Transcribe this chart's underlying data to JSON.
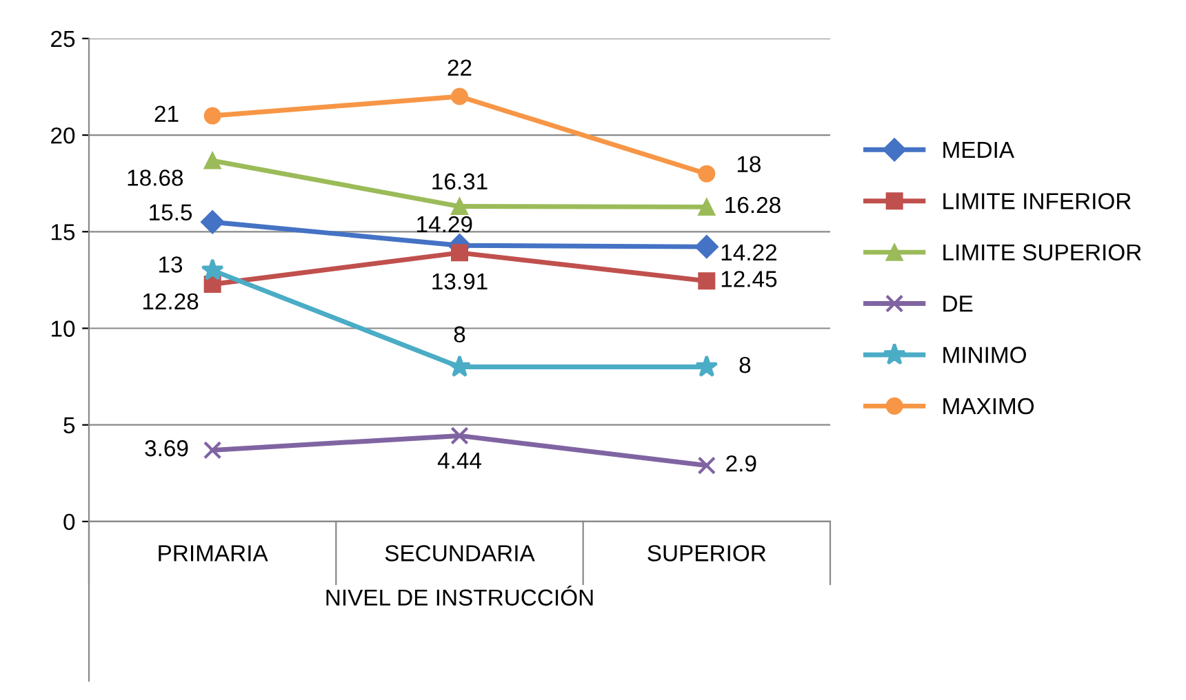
{
  "chart_data": {
    "type": "line",
    "xlabel": "NIVEL DE INSTRUCCIÓN",
    "categories": [
      "PRIMARIA",
      "SECUNDARIA",
      "SUPERIOR"
    ],
    "series": [
      {
        "name": "MEDIA",
        "color": "#4472c4",
        "marker": "diamond",
        "values": [
          15.5,
          14.29,
          14.22
        ]
      },
      {
        "name": "LIMITE INFERIOR",
        "color": "#c0504d",
        "marker": "square",
        "values": [
          12.28,
          13.91,
          12.45
        ]
      },
      {
        "name": "LIMITE SUPERIOR",
        "color": "#9bbb59",
        "marker": "triangle",
        "values": [
          18.68,
          16.31,
          16.28
        ]
      },
      {
        "name": "DE",
        "color": "#8064a2",
        "marker": "cross",
        "values": [
          3.69,
          4.44,
          2.9
        ]
      },
      {
        "name": "MINIMO",
        "color": "#4bacc6",
        "marker": "star",
        "values": [
          13,
          8,
          8
        ]
      },
      {
        "name": "MAXIMO",
        "color": "#f79646",
        "marker": "circle",
        "values": [
          21,
          22,
          18
        ]
      }
    ],
    "ylim": [
      0,
      25
    ],
    "yticks": [
      0,
      5,
      10,
      15,
      20,
      25
    ],
    "grid": "y",
    "legend": "right",
    "data_labels": true
  }
}
